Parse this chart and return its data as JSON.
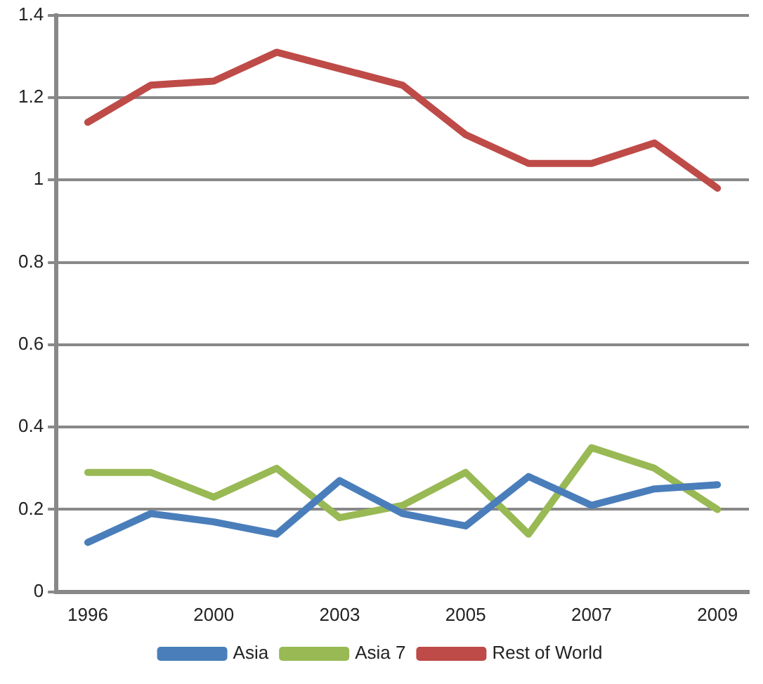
{
  "chart_data": {
    "type": "line",
    "categories": [
      "1996",
      null,
      "2000",
      null,
      "2003",
      null,
      "2005",
      null,
      "2007",
      null,
      "2009"
    ],
    "series": [
      {
        "name": "Asia",
        "color": "#4a7ebb",
        "values": [
          0.12,
          0.19,
          0.17,
          0.14,
          0.27,
          0.19,
          0.16,
          0.28,
          0.21,
          0.25,
          0.26
        ]
      },
      {
        "name": "Asia 7",
        "color": "#98b954",
        "values": [
          0.29,
          0.29,
          0.23,
          0.3,
          0.18,
          0.21,
          0.29,
          0.14,
          0.35,
          0.3,
          0.2
        ]
      },
      {
        "name": "Rest of World",
        "color": "#be4b48",
        "values": [
          1.14,
          1.23,
          1.24,
          1.31,
          1.27,
          1.23,
          1.11,
          1.04,
          1.04,
          1.09,
          0.98
        ]
      }
    ],
    "ylim": [
      0,
      1.4
    ],
    "yticks": [
      0,
      0.2,
      0.4,
      0.6,
      0.8,
      1,
      1.2,
      1.4
    ],
    "grid": "y",
    "legend": "bottom",
    "marker": "none",
    "line_style": "solid"
  }
}
